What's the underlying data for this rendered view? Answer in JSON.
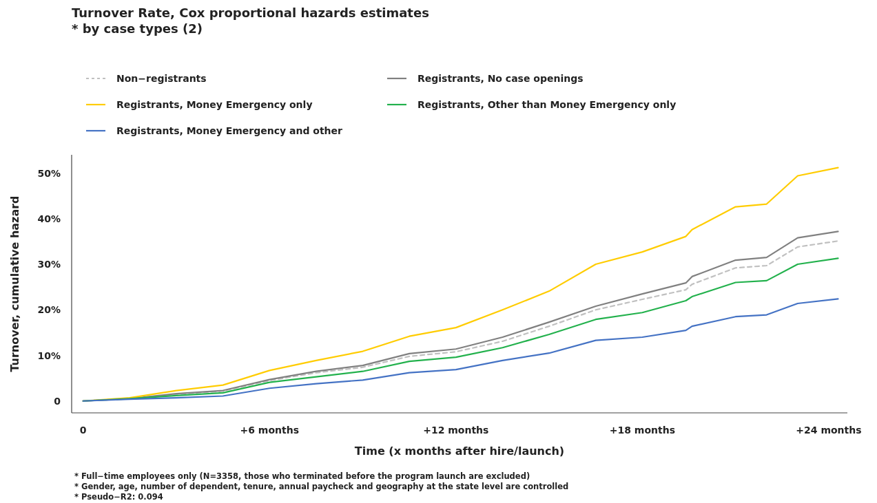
{
  "chart_data": {
    "type": "line",
    "title": "Turnover Rate, Cox proportional hazards estimates",
    "subtitle": "*  by case types (2)",
    "xlabel": "Time (x months after hire/launch)",
    "ylabel": "Turnover, cumulative hazard",
    "x": [
      0,
      1.5,
      3,
      4.5,
      6,
      7.5,
      9,
      10.5,
      12,
      13.5,
      15,
      16.5,
      18,
      19.4,
      19.6,
      21,
      22,
      23,
      24.3
    ],
    "series": [
      {
        "name": "Non−registrants",
        "color": "#c0c0c0",
        "line_style": "dashed",
        "values": [
          0,
          0.5,
          1.5,
          2.2,
          4.5,
          6.2,
          7.4,
          9.8,
          10.8,
          13.1,
          16.4,
          20.0,
          22.3,
          24.4,
          25.6,
          29.2,
          29.7,
          33.8,
          35.1
        ]
      },
      {
        "name": "Registrants, No case openings",
        "color": "#808080",
        "values": [
          0,
          0.5,
          1.6,
          2.3,
          4.7,
          6.5,
          7.8,
          10.4,
          11.4,
          14.0,
          17.3,
          20.8,
          23.5,
          25.9,
          27.3,
          30.9,
          31.5,
          35.8,
          37.2
        ]
      },
      {
        "name": "Registrants, Money Emergency only",
        "color": "#ffcc00",
        "values": [
          0,
          0.7,
          2.3,
          3.5,
          6.7,
          8.9,
          10.9,
          14.2,
          16.1,
          20.0,
          24.1,
          30.0,
          32.7,
          36.1,
          37.6,
          42.6,
          43.2,
          49.4,
          51.2
        ]
      },
      {
        "name": "Registrants, Other than Money Emergency only",
        "color": "#22b14c",
        "values": [
          0,
          0.5,
          1.2,
          1.8,
          4.1,
          5.3,
          6.5,
          8.7,
          9.6,
          11.7,
          14.6,
          17.9,
          19.4,
          22.0,
          22.9,
          26.0,
          26.4,
          30.0,
          31.3
        ]
      },
      {
        "name": "Registrants, Money Emergency and other",
        "color": "#4472c4",
        "values": [
          0,
          0.4,
          0.7,
          1.1,
          2.8,
          3.8,
          4.6,
          6.2,
          6.9,
          8.9,
          10.5,
          13.3,
          14.0,
          15.5,
          16.4,
          18.5,
          18.9,
          21.4,
          22.4
        ]
      }
    ],
    "xlim": [
      -0.37,
      24.6
    ],
    "xticks": [
      0,
      {
        "value": 6,
        "label": "+6 months"
      },
      {
        "value": 12,
        "label": "+12 months"
      },
      {
        "value": 18,
        "label": "+18 months"
      },
      {
        "value": 24,
        "label": "+24 months"
      }
    ],
    "ylim": [
      -2.6,
      54
    ],
    "yticks": [
      0,
      {
        "value": 10,
        "label": "10%"
      },
      {
        "value": 20,
        "label": "20%"
      },
      {
        "value": 30,
        "label": "30%"
      },
      {
        "value": 40,
        "label": "40%"
      },
      {
        "value": 50,
        "label": "50%"
      }
    ],
    "legend": "top left",
    "line_style": "solid",
    "annotations": [
      "* Full−time employees only (N=3358, those who terminated before the program launch are excluded)",
      "* Gender, age, number of dependent, tenure, annual paycheck and geography at the state level are controlled",
      "*  Pseudo−R2: 0.094"
    ]
  }
}
